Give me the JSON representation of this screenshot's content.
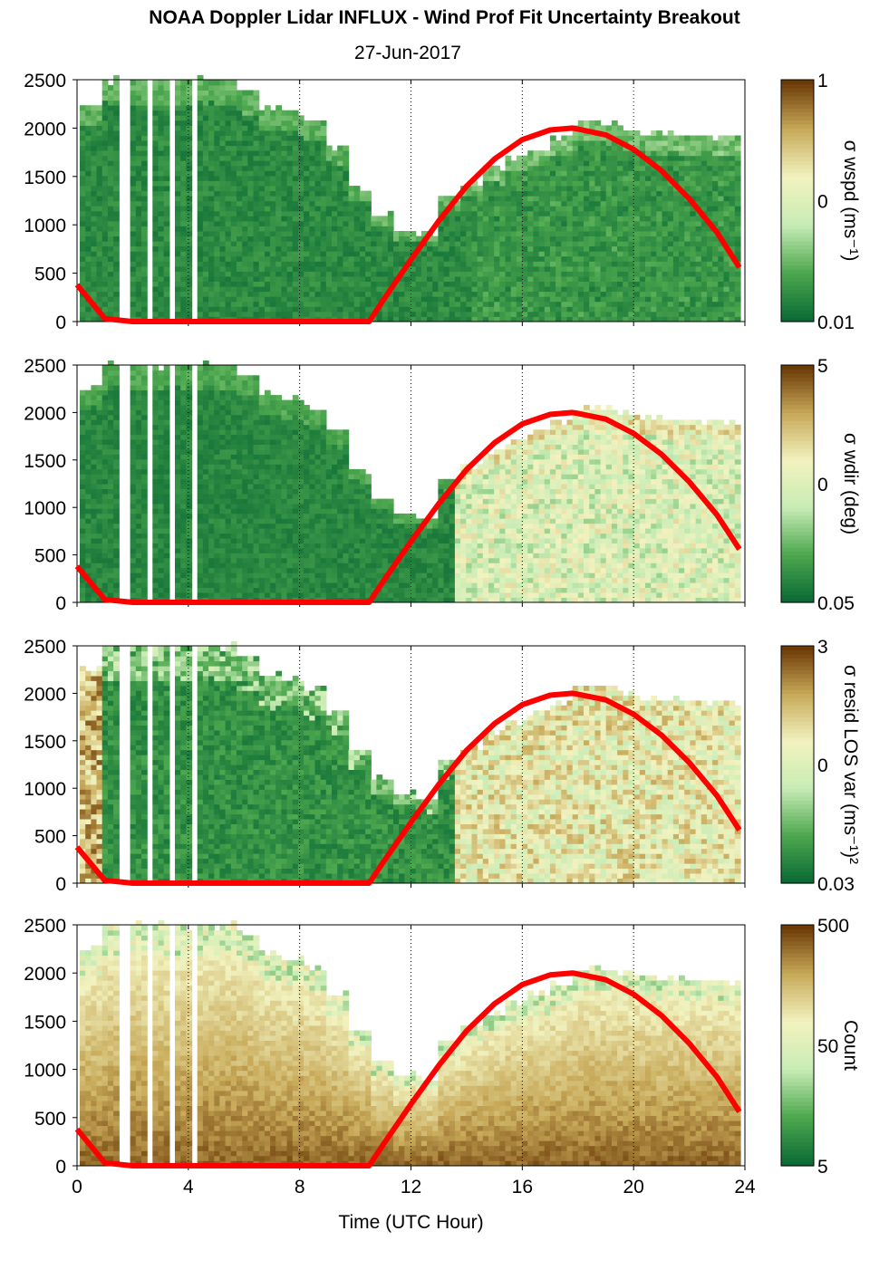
{
  "figure": {
    "title": "NOAA Doppler Lidar INFLUX - Wind Prof Fit Uncertainty Breakout",
    "date": "27-Jun-2017"
  },
  "chart_data": [
    {
      "type": "heatmap",
      "ylabel": "",
      "ylim": [
        0,
        2500
      ],
      "yticks": [
        0,
        500,
        1000,
        1500,
        2000,
        2500
      ],
      "xlim": [
        0,
        24
      ],
      "xticks": [
        0,
        4,
        8,
        12,
        16,
        20,
        24
      ],
      "grid": "dotted vertical lines at x ticks",
      "colorbar": {
        "label": "σ wspd (ms⁻¹)",
        "ticks": [
          "1",
          "0",
          "0.01"
        ],
        "scale": "log"
      },
      "rows": 49,
      "row_height_m": 52,
      "top_by_hour": [
        2260,
        2500,
        2500,
        2500,
        2500,
        2500,
        2500,
        2400,
        2200,
        2150,
        2050,
        1800,
        1400,
        1100,
        950,
        900,
        1300,
        1450,
        1600,
        1700,
        1800,
        1900,
        2050,
        2060,
        2000,
        1950,
        1940,
        1930,
        1920,
        1910
      ],
      "cells": "log10 uncertainty per gate; dark green (≈0.01) dominant; nighttime and daytime low",
      "series": [
        {
          "name": "",
          "x": [
            0,
            1,
            2,
            3,
            4,
            5,
            6,
            7,
            8,
            9,
            10,
            10.5,
            11,
            12,
            13,
            14,
            15,
            16,
            17,
            17.8,
            18,
            19,
            20,
            21,
            22,
            23,
            23.8
          ],
          "y": [
            380,
            30,
            0,
            0,
            0,
            0,
            0,
            0,
            0,
            0,
            0,
            0,
            220,
            640,
            1040,
            1400,
            1680,
            1880,
            1980,
            2000,
            1990,
            1930,
            1780,
            1560,
            1270,
            920,
            560
          ]
        }
      ]
    },
    {
      "type": "heatmap",
      "ylim": [
        0,
        2500
      ],
      "yticks": [
        0,
        500,
        1000,
        1500,
        2000,
        2500
      ],
      "xlim": [
        0,
        24
      ],
      "colorbar": {
        "label": "σ wdir (deg)",
        "ticks": [
          "5",
          "0",
          "0.05"
        ],
        "scale": "log"
      },
      "cells": "night: dark green; after ~14 UTC: light green / pale yellow / tan values",
      "series": [
        {
          "name": "",
          "x": [
            0,
            1,
            2,
            3,
            4,
            5,
            6,
            7,
            8,
            9,
            10,
            10.5,
            11,
            12,
            13,
            14,
            15,
            16,
            17,
            17.8,
            18,
            19,
            20,
            21,
            22,
            23,
            23.8
          ],
          "y": [
            380,
            30,
            0,
            0,
            0,
            0,
            0,
            0,
            0,
            0,
            0,
            0,
            220,
            640,
            1040,
            1400,
            1680,
            1880,
            1980,
            2000,
            1990,
            1930,
            1780,
            1560,
            1270,
            920,
            560
          ]
        }
      ]
    },
    {
      "type": "heatmap",
      "ylim": [
        0,
        2500
      ],
      "yticks": [
        0,
        500,
        1000,
        1500,
        2000,
        2500
      ],
      "xlim": [
        0,
        24
      ],
      "colorbar": {
        "label": "σ resid LOS var (ms⁻¹)²",
        "ticks": [
          "3",
          "0",
          "0.03"
        ],
        "scale": "log"
      },
      "cells": "mixed: brown/tan near 0-1 UTC, dark green nighttime, pale yellow/tan daytime",
      "series": [
        {
          "name": "",
          "x": [
            0,
            1,
            2,
            3,
            4,
            5,
            6,
            7,
            8,
            9,
            10,
            10.5,
            11,
            12,
            13,
            14,
            15,
            16,
            17,
            17.8,
            18,
            19,
            20,
            21,
            22,
            23,
            23.8
          ],
          "y": [
            380,
            30,
            0,
            0,
            0,
            0,
            0,
            0,
            0,
            0,
            0,
            0,
            220,
            640,
            1040,
            1400,
            1680,
            1880,
            1980,
            2000,
            1990,
            1930,
            1780,
            1560,
            1270,
            920,
            560
          ]
        }
      ]
    },
    {
      "type": "heatmap",
      "ylim": [
        0,
        2500
      ],
      "yticks": [
        0,
        500,
        1000,
        1500,
        2000,
        2500
      ],
      "xlim": [
        0,
        24
      ],
      "xticks": [
        0,
        4,
        8,
        12,
        16,
        20,
        24
      ],
      "xlabel": "Time (UTC Hour)",
      "colorbar": {
        "label": "Count",
        "ticks": [
          "500",
          "50",
          "5"
        ],
        "scale": "log"
      },
      "cells": "dark brown (~500 counts) at low altitude, tan/light green near top of coverage",
      "series": [
        {
          "name": "",
          "x": [
            0,
            1,
            2,
            3,
            4,
            5,
            6,
            7,
            8,
            9,
            10,
            10.5,
            11,
            12,
            13,
            14,
            15,
            16,
            17,
            17.8,
            18,
            19,
            20,
            21,
            22,
            23,
            23.8
          ],
          "y": [
            380,
            30,
            0,
            0,
            0,
            0,
            0,
            0,
            0,
            0,
            0,
            0,
            220,
            640,
            1040,
            1400,
            1680,
            1880,
            1980,
            2000,
            1990,
            1930,
            1780,
            1560,
            1270,
            920,
            560
          ]
        }
      ]
    }
  ],
  "axis_labels": {
    "xticks": [
      "0",
      "4",
      "8",
      "12",
      "16",
      "20",
      "24"
    ],
    "yticks": [
      "0",
      "500",
      "1000",
      "1500",
      "2000",
      "2500"
    ],
    "xlabel": "Time (UTC Hour)"
  },
  "colors": {
    "darkgreen": "#0b6b35",
    "midgreen": "#4ea84f",
    "lightgreen": "#c8ecb6",
    "paleyellow": "#f2f2bf",
    "tan": "#c8aa5a",
    "brown": "#6b3a06",
    "sun_line": "#ff0000"
  }
}
